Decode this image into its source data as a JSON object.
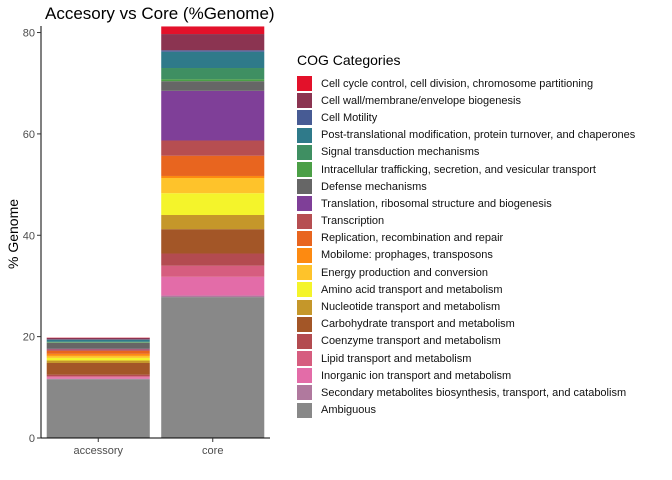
{
  "chart_data": {
    "type": "bar",
    "stacked": true,
    "title": "Accesory vs Core (%Genome)",
    "xlabel": "",
    "ylabel": "% Genome",
    "ylim": [
      0,
      80.5
    ],
    "yticks": [
      0,
      20,
      40,
      60,
      80
    ],
    "categories": [
      "accessory",
      "core"
    ],
    "grid": false,
    "legend_title": "COG Categories",
    "legend_position": "right",
    "series": [
      {
        "name": "Ambiguous",
        "color": "#888888",
        "values": [
          11.6,
          27.8
        ]
      },
      {
        "name": "Secondary metabolites biosynthesis, transport, and catabolism",
        "color": "#b0799e",
        "values": [
          0.1,
          0.3
        ]
      },
      {
        "name": "Inorganic ion transport and metabolism",
        "color": "#e36ca8",
        "values": [
          0.3,
          3.7
        ]
      },
      {
        "name": "Lipid transport and metabolism",
        "color": "#d65d7f",
        "values": [
          0.2,
          2.2
        ]
      },
      {
        "name": "Coenzyme transport and metabolism",
        "color": "#b34b50",
        "values": [
          0.3,
          2.4
        ]
      },
      {
        "name": "Carbohydrate transport and metabolism",
        "color": "#a35627",
        "values": [
          2.3,
          4.8
        ]
      },
      {
        "name": "Nucleotide transport and metabolism",
        "color": "#c5972a",
        "values": [
          0.5,
          2.8
        ]
      },
      {
        "name": "Amino acid transport and metabolism",
        "color": "#f4f42b",
        "values": [
          0.5,
          4.3
        ]
      },
      {
        "name": "Energy production and conversion",
        "color": "#fec32b",
        "values": [
          0.4,
          3.0
        ]
      },
      {
        "name": "Mobilome: prophages, transposons",
        "color": "#fd8a11",
        "values": [
          0.4,
          0.4
        ]
      },
      {
        "name": "Replication, recombination and repair",
        "color": "#e8651f",
        "values": [
          0.6,
          4.0
        ]
      },
      {
        "name": "Transcription",
        "color": "#b64e51",
        "values": [
          0.3,
          3.0
        ]
      },
      {
        "name": "Translation, ribosomal structure and biogenesis",
        "color": "#7f3f98",
        "values": [
          0.1,
          9.8
        ]
      },
      {
        "name": "Defense mechanisms",
        "color": "#666666",
        "values": [
          1.2,
          1.9
        ]
      },
      {
        "name": "Intracellular trafficking, secretion, and vesicular transport",
        "color": "#4b9f46",
        "values": [
          0.1,
          0.4
        ]
      },
      {
        "name": "Signal transduction mechanisms",
        "color": "#3f8f62",
        "values": [
          0.1,
          2.2
        ]
      },
      {
        "name": "Post-translational modification, protein turnover, and chaperones",
        "color": "#2f7a8a",
        "values": [
          0.4,
          3.2
        ]
      },
      {
        "name": "Cell Motility",
        "color": "#475b94",
        "values": [
          0.05,
          0.3
        ]
      },
      {
        "name": "Cell wall/membrane/envelope biogenesis",
        "color": "#8b3451",
        "values": [
          0.3,
          3.2
        ]
      },
      {
        "name": "Cell cycle control, cell division, chromosome partitioning",
        "color": "#e3112a",
        "values": [
          0.05,
          1.5
        ]
      }
    ]
  }
}
